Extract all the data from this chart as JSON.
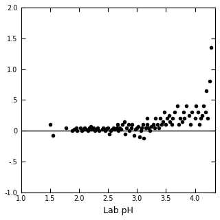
{
  "title": "",
  "xlabel": "Lab pH",
  "ylabel": "",
  "xlim": [
    1.0,
    4.35
  ],
  "ylim": [
    -1.0,
    2.0
  ],
  "xticks": [
    1.0,
    1.5,
    2.0,
    2.5,
    3.0,
    3.5,
    4.0
  ],
  "yticks": [
    -1.0,
    -0.5,
    0.0,
    0.5,
    1.0,
    1.5,
    2.0
  ],
  "hline_y": 0.0,
  "hline_color": "#000000",
  "marker_color": "#000000",
  "marker_size": 4,
  "background_color": "#ffffff",
  "scatter_x": [
    1.5,
    1.55,
    1.78,
    1.88,
    1.92,
    1.95,
    1.97,
    2.02,
    2.05,
    2.08,
    2.1,
    2.12,
    2.15,
    2.18,
    2.2,
    2.22,
    2.25,
    2.28,
    2.3,
    2.32,
    2.35,
    2.4,
    2.42,
    2.45,
    2.48,
    2.5,
    2.52,
    2.55,
    2.57,
    2.6,
    2.62,
    2.65,
    2.67,
    2.68,
    2.7,
    2.72,
    2.75,
    2.78,
    2.8,
    2.82,
    2.85,
    2.87,
    2.9,
    2.92,
    2.95,
    2.97,
    3.0,
    3.02,
    3.05,
    3.07,
    3.08,
    3.1,
    3.12,
    3.15,
    3.17,
    3.18,
    3.2,
    3.22,
    3.25,
    3.28,
    3.3,
    3.32,
    3.35,
    3.38,
    3.4,
    3.42,
    3.45,
    3.47,
    3.5,
    3.52,
    3.55,
    3.57,
    3.6,
    3.62,
    3.65,
    3.7,
    3.72,
    3.75,
    3.78,
    3.8,
    3.82,
    3.85,
    3.9,
    3.92,
    3.95,
    4.0,
    4.02,
    4.05,
    4.08,
    4.1,
    4.12,
    4.15,
    4.18,
    4.2,
    4.22,
    4.25,
    4.28
  ],
  "scatter_y": [
    0.1,
    -0.08,
    0.05,
    0.0,
    0.02,
    0.05,
    0.0,
    0.05,
    0.0,
    0.02,
    0.05,
    0.02,
    0.0,
    0.05,
    0.07,
    0.02,
    0.05,
    0.0,
    0.02,
    0.05,
    0.0,
    0.02,
    0.05,
    0.0,
    0.03,
    0.05,
    -0.05,
    0.0,
    0.02,
    0.05,
    0.02,
    0.05,
    0.1,
    0.0,
    0.05,
    0.02,
    0.1,
    0.15,
    -0.05,
    0.05,
    0.1,
    0.0,
    0.05,
    0.1,
    -0.08,
    0.02,
    0.05,
    0.07,
    -0.1,
    0.0,
    0.05,
    0.1,
    -0.12,
    0.05,
    0.1,
    0.2,
    0.05,
    0.0,
    0.07,
    0.1,
    0.05,
    0.2,
    0.1,
    0.05,
    0.2,
    0.1,
    0.15,
    0.3,
    0.1,
    0.2,
    0.25,
    0.15,
    0.1,
    0.2,
    0.3,
    0.4,
    0.1,
    0.2,
    0.15,
    0.3,
    0.2,
    0.4,
    0.25,
    0.1,
    0.3,
    0.2,
    0.4,
    0.3,
    0.1,
    0.2,
    0.25,
    0.4,
    0.3,
    0.65,
    0.2,
    0.8,
    1.35
  ]
}
